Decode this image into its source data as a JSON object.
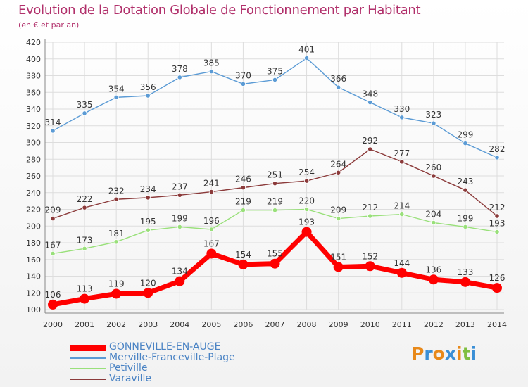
{
  "title": "Evolution de la Dotation Globale de Fonctionnement par Habitant",
  "subtitle": "(en € et par an)",
  "colors": {
    "title": "#b1306b",
    "grid": "#dddddd",
    "legend_text": "#4a83c4"
  },
  "chart_data": {
    "type": "line",
    "x": [
      "2000",
      "2001",
      "2002",
      "2003",
      "2004",
      "2005",
      "2006",
      "2007",
      "2008",
      "2009",
      "2010",
      "2011",
      "2012",
      "2013",
      "2014"
    ],
    "ylim": [
      100,
      420
    ],
    "yticks": [
      100,
      120,
      140,
      160,
      180,
      200,
      220,
      240,
      260,
      280,
      300,
      320,
      340,
      360,
      380,
      400,
      420
    ],
    "grid": true,
    "legend_position": "bottom-left",
    "series": [
      {
        "name": "GONNEVILLE-EN-AUGE",
        "color": "#ff0000",
        "values": [
          106,
          113,
          119,
          120,
          134,
          167,
          154,
          155,
          193,
          151,
          152,
          144,
          136,
          133,
          126
        ]
      },
      {
        "name": "Merville-Franceville-Plage",
        "color": "#5b9bd5",
        "values": [
          314,
          335,
          354,
          356,
          378,
          385,
          370,
          375,
          401,
          366,
          348,
          330,
          323,
          299,
          282
        ]
      },
      {
        "name": "Petiville",
        "color": "#99e07a",
        "values": [
          167,
          173,
          181,
          195,
          199,
          196,
          219,
          219,
          220,
          209,
          212,
          214,
          204,
          199,
          193
        ]
      },
      {
        "name": "Varaville",
        "color": "#8b3a3a",
        "values": [
          209,
          222,
          232,
          234,
          237,
          241,
          246,
          251,
          254,
          264,
          292,
          277,
          260,
          243,
          212
        ]
      }
    ]
  },
  "logo": {
    "text": "Proxiti"
  }
}
